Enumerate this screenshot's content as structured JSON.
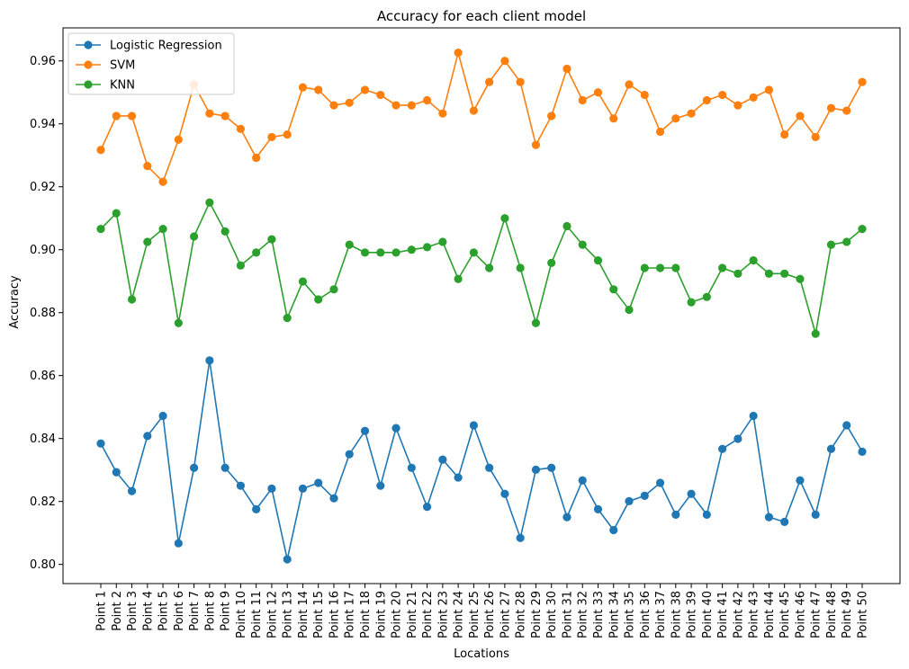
{
  "chart_data": {
    "type": "line",
    "title": "Accuracy for each client model",
    "xlabel": "Locations",
    "ylabel": "Accuracy",
    "categories": [
      "Point 1",
      "Point 2",
      "Point 3",
      "Point 4",
      "Point 5",
      "Point 6",
      "Point 7",
      "Point 8",
      "Point 9",
      "Point 10",
      "Point 11",
      "Point 12",
      "Point 13",
      "Point 14",
      "Point 15",
      "Point 16",
      "Point 17",
      "Point 18",
      "Point 19",
      "Point 20",
      "Point 21",
      "Point 22",
      "Point 23",
      "Point 24",
      "Point 25",
      "Point 26",
      "Point 27",
      "Point 28",
      "Point 29",
      "Point 30",
      "Point 31",
      "Point 32",
      "Point 33",
      "Point 34",
      "Point 35",
      "Point 36",
      "Point 37",
      "Point 38",
      "Point 39",
      "Point 40",
      "Point 41",
      "Point 42",
      "Point 43",
      "Point 44",
      "Point 45",
      "Point 46",
      "Point 47",
      "Point 48",
      "Point 49",
      "Point 50"
    ],
    "ylim": [
      0.7939,
      0.9705
    ],
    "yticks": [
      0.8,
      0.82,
      0.84,
      0.86,
      0.88,
      0.9,
      0.92,
      0.94,
      0.96
    ],
    "ytick_labels": [
      "0.80",
      "0.82",
      "0.84",
      "0.86",
      "0.88",
      "0.90",
      "0.92",
      "0.94",
      "0.96"
    ],
    "grid": false,
    "legend_position": "top-left",
    "series": [
      {
        "name": "Logistic Regression",
        "color": "#1f77b4",
        "values": [
          0.8384,
          0.8293,
          0.8233,
          0.8408,
          0.8472,
          0.8067,
          0.8307,
          0.8648,
          0.8307,
          0.825,
          0.8175,
          0.8241,
          0.8016,
          0.8241,
          0.8259,
          0.821,
          0.835,
          0.8424,
          0.825,
          0.8433,
          0.8307,
          0.8183,
          0.8333,
          0.8276,
          0.8442,
          0.8307,
          0.8224,
          0.8084,
          0.8301,
          0.8307,
          0.815,
          0.8267,
          0.8175,
          0.8109,
          0.8201,
          0.8218,
          0.8259,
          0.8158,
          0.8224,
          0.8158,
          0.8367,
          0.8399,
          0.8472,
          0.815,
          0.8135,
          0.8267,
          0.8158,
          0.8367,
          0.8442,
          0.8358
        ]
      },
      {
        "name": "SVM",
        "color": "#ff7f0e",
        "values": [
          0.9317,
          0.9425,
          0.9425,
          0.9266,
          0.9216,
          0.935,
          0.9525,
          0.9433,
          0.9425,
          0.9384,
          0.9292,
          0.9358,
          0.9366,
          0.9516,
          0.9508,
          0.9459,
          0.9467,
          0.9508,
          0.9492,
          0.9459,
          0.9459,
          0.9475,
          0.9433,
          0.9626,
          0.9442,
          0.9533,
          0.96,
          0.9533,
          0.9333,
          0.9425,
          0.9575,
          0.9475,
          0.95,
          0.9417,
          0.9525,
          0.9492,
          0.9375,
          0.9417,
          0.9433,
          0.9475,
          0.9492,
          0.9459,
          0.9484,
          0.9508,
          0.9366,
          0.9425,
          0.9358,
          0.945,
          0.9442,
          0.9533
        ]
      },
      {
        "name": "KNN",
        "color": "#2ca02c",
        "values": [
          0.9066,
          0.9116,
          0.8842,
          0.9025,
          0.9066,
          0.8767,
          0.9042,
          0.915,
          0.9058,
          0.895,
          0.8991,
          0.9033,
          0.8783,
          0.8899,
          0.8842,
          0.8874,
          0.9016,
          0.8991,
          0.8991,
          0.8991,
          0.9,
          0.9008,
          0.9025,
          0.8907,
          0.8991,
          0.8942,
          0.91,
          0.8942,
          0.8767,
          0.8958,
          0.9075,
          0.9016,
          0.8966,
          0.8874,
          0.8809,
          0.8942,
          0.8942,
          0.8942,
          0.8833,
          0.885,
          0.8942,
          0.8924,
          0.8966,
          0.8924,
          0.8924,
          0.8907,
          0.8733,
          0.9016,
          0.9025,
          0.9066
        ]
      }
    ]
  }
}
